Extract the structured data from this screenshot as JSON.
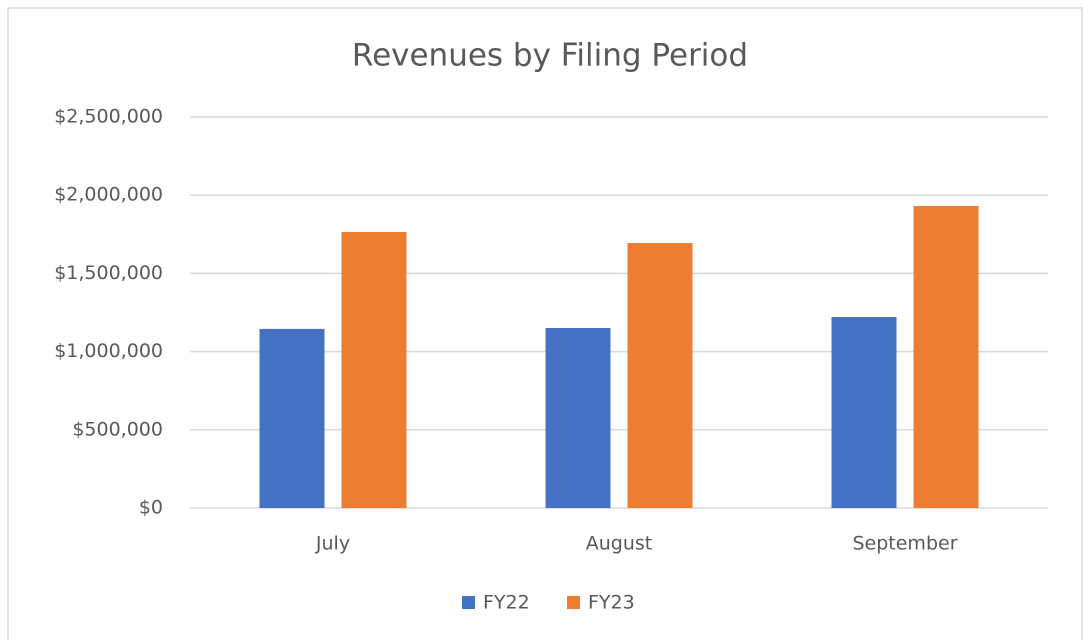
{
  "chart_data": {
    "type": "bar",
    "title": "Revenues by Filing Period",
    "categories": [
      "July",
      "August",
      "September"
    ],
    "series": [
      {
        "name": "FY22",
        "color": "#4472c4",
        "values": [
          1145000,
          1151000,
          1221000
        ]
      },
      {
        "name": "FY23",
        "color": "#ed7d31",
        "values": [
          1765000,
          1694000,
          1931000
        ]
      }
    ],
    "ylim": [
      0,
      2500000
    ],
    "yticks": [
      {
        "value": 0,
        "label": "$0"
      },
      {
        "value": 500000,
        "label": "$500,000"
      },
      {
        "value": 1000000,
        "label": "$1,000,000"
      },
      {
        "value": 1500000,
        "label": "$1,500,000"
      },
      {
        "value": 2000000,
        "label": "$2,000,000"
      },
      {
        "value": 2500000,
        "label": "$2,500,000"
      }
    ],
    "grid": true,
    "legend": "bottom"
  }
}
